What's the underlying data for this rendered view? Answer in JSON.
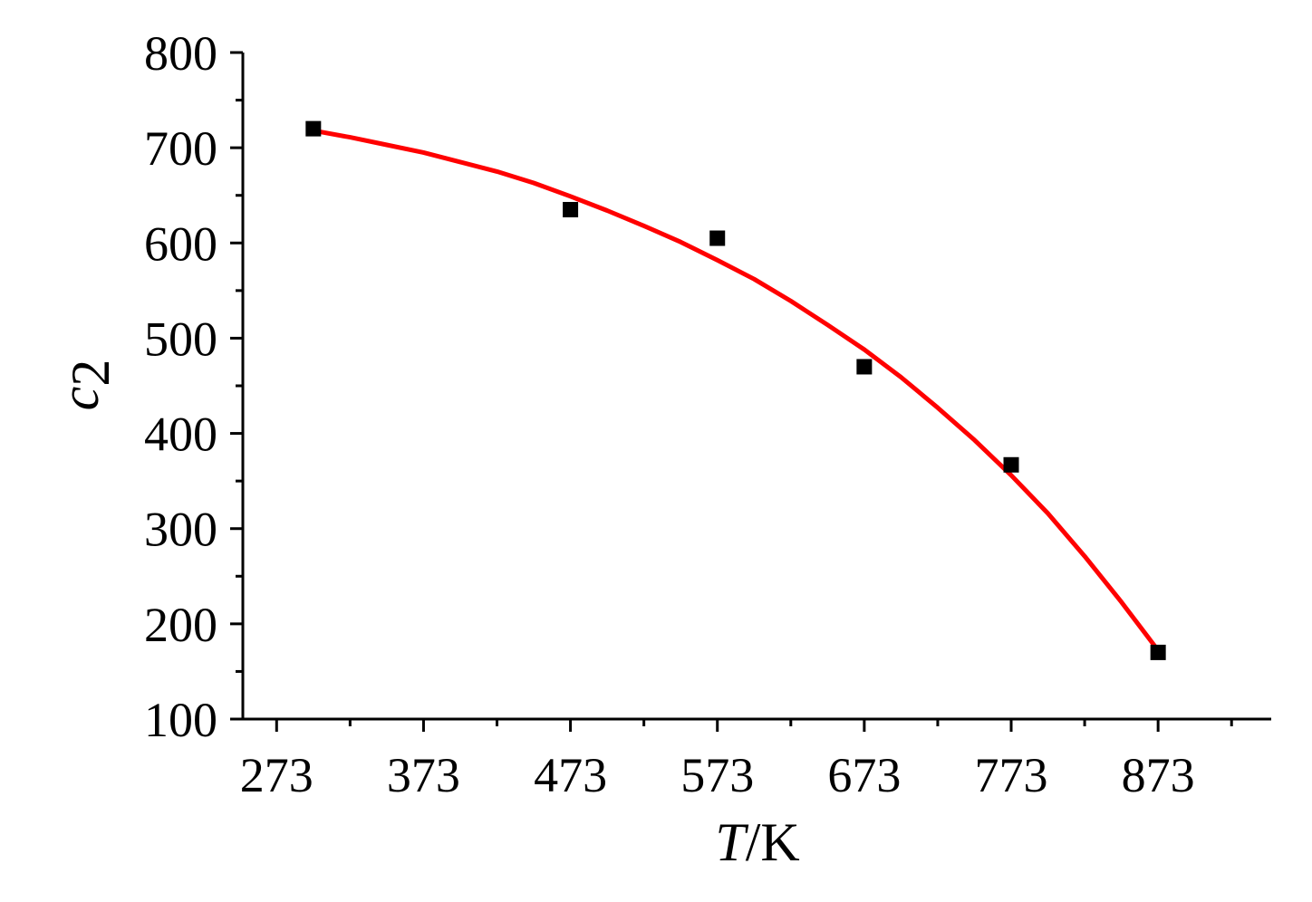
{
  "chart_data": {
    "type": "scatter",
    "title": "",
    "xlabel": {
      "symbol": "T",
      "unit": "/K"
    },
    "ylabel": {
      "symbol": "c",
      "subscript": "2"
    },
    "x_ticks": [
      273,
      373,
      473,
      573,
      673,
      773,
      873
    ],
    "y_ticks": [
      100,
      200,
      300,
      400,
      500,
      600,
      700,
      800
    ],
    "xlim": [
      250,
      950
    ],
    "ylim": [
      100,
      800
    ],
    "grid": false,
    "legend": "none",
    "series": [
      {
        "kind": "points",
        "marker": "square",
        "color": "#000000",
        "x": [
          298,
          473,
          573,
          673,
          773,
          873
        ],
        "y": [
          720,
          635,
          605,
          470,
          367,
          170
        ]
      },
      {
        "kind": "fit-line",
        "color": "#ff0000",
        "x": [
          298,
          323,
          348,
          373,
          398,
          423,
          448,
          473,
          498,
          523,
          548,
          573,
          598,
          623,
          648,
          673,
          698,
          723,
          748,
          773,
          798,
          823,
          848,
          873
        ],
        "y": [
          718,
          711,
          703,
          695,
          685,
          675,
          663,
          649,
          634,
          618,
          601,
          582,
          562,
          539,
          514,
          488,
          459,
          427,
          393,
          356,
          316,
          271,
          223,
          172
        ]
      }
    ]
  }
}
